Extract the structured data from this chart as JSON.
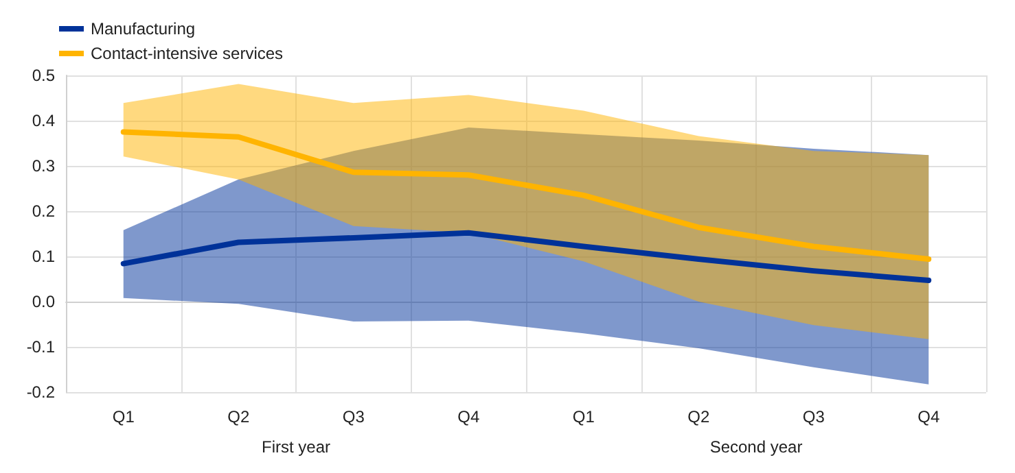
{
  "chart_data": {
    "type": "line",
    "categories": [
      "Q1",
      "Q2",
      "Q3",
      "Q4",
      "Q1",
      "Q2",
      "Q3",
      "Q4"
    ],
    "annotations": [
      "First year",
      "Second year"
    ],
    "ylim": [
      -0.2,
      0.5
    ],
    "yticks": [
      {
        "value": -0.2,
        "label": "-0.2"
      },
      {
        "value": -0.1,
        "label": "-0.1"
      },
      {
        "value": 0,
        "label": "0.0"
      },
      {
        "value": 0.1,
        "label": "0.1"
      },
      {
        "value": 0.2,
        "label": "0.2"
      },
      {
        "value": 0.3,
        "label": "0.3"
      },
      {
        "value": 0.4,
        "label": "0.4"
      },
      {
        "value": 0.5,
        "label": "0.5"
      }
    ],
    "grid": true,
    "legend": "top left",
    "marker": "none",
    "line_style": "solid",
    "series": [
      {
        "name": "Manufacturing",
        "color": "#003299",
        "values": [
          0.084,
          0.131,
          0.141,
          0.152,
          0.122,
          0.094,
          0.068,
          0.047
        ],
        "lower": [
          0.008,
          -0.005,
          -0.044,
          -0.042,
          -0.07,
          -0.103,
          -0.145,
          -0.183
        ],
        "upper": [
          0.158,
          0.27,
          0.333,
          0.385,
          0.37,
          0.356,
          0.338,
          0.324
        ]
      },
      {
        "name": "Contact-intensive services",
        "color": "#ffb400",
        "values": [
          0.375,
          0.364,
          0.286,
          0.28,
          0.235,
          0.164,
          0.122,
          0.094
        ],
        "lower": [
          0.321,
          0.27,
          0.167,
          0.152,
          0.089,
          0.0,
          -0.052,
          -0.083
        ],
        "upper": [
          0.439,
          0.481,
          0.439,
          0.457,
          0.422,
          0.366,
          0.333,
          0.324
        ]
      }
    ]
  }
}
